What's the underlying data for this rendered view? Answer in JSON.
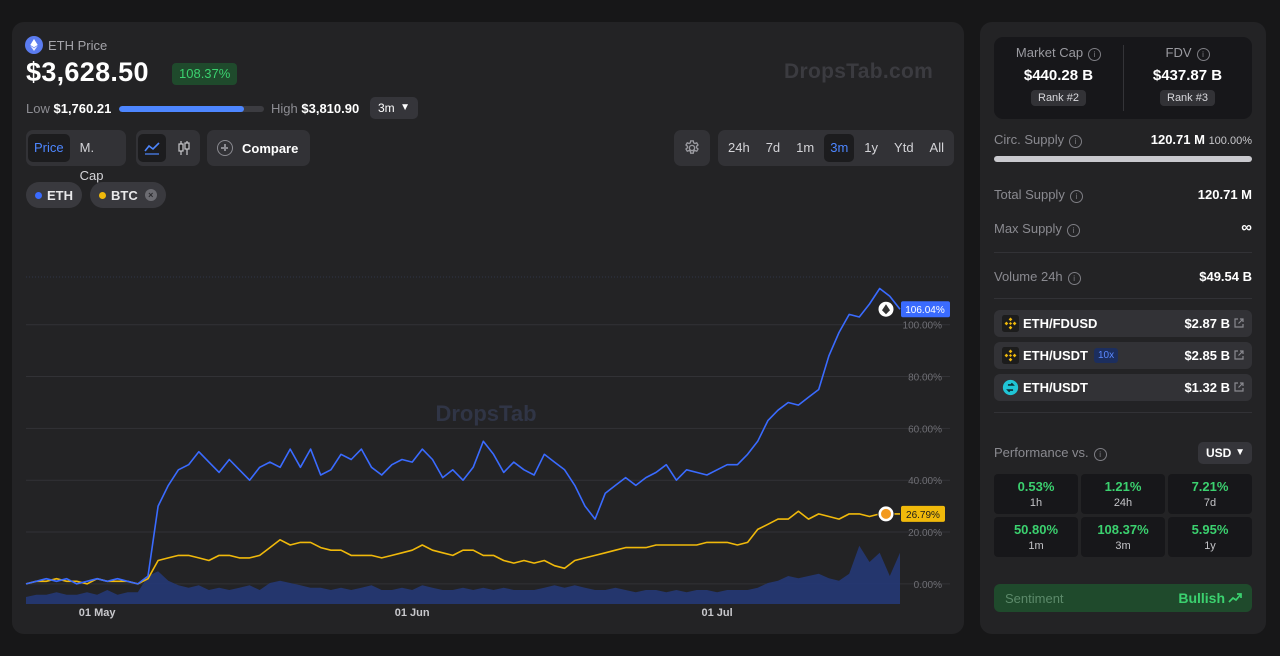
{
  "header": {
    "coin_label": "ETH Price",
    "price": "$3,628.50",
    "change_badge": "108.37%",
    "watermark": "DropsTab.com",
    "low_label": "Low",
    "low_value": "$1,760.21",
    "high_label": "High",
    "high_value": "$3,810.90",
    "range_fill": 0.86,
    "period_select": "3m"
  },
  "toolbar": {
    "metric_tabs": [
      "Price",
      "M. Cap"
    ],
    "active_metric": "Price",
    "compare_label": "Compare",
    "timeframes": [
      "24h",
      "7d",
      "1m",
      "3m",
      "1y",
      "Ytd",
      "All"
    ],
    "active_timeframe": "3m"
  },
  "legend": {
    "chip_eth": "ETH",
    "chip_btc": "BTC"
  },
  "colors": {
    "eth": "#3a6bff",
    "btc": "#f0b90b",
    "up": "#3bd16f",
    "accent": "#4d86ff"
  },
  "chart_data": {
    "type": "line",
    "title": "ETH Price",
    "y_unit": "% change",
    "ylim": [
      -7,
      130
    ],
    "y_ticks": [
      "0.00%",
      "20.00%",
      "40.00%",
      "60.00%",
      "80.00%",
      "100.00%"
    ],
    "y_tick_values": [
      0,
      20,
      40,
      60,
      80,
      100
    ],
    "x_ticks": [
      "01 May",
      "01 Jun",
      "01 Jul"
    ],
    "x_tick_index": [
      7,
      38,
      68
    ],
    "center_watermark": "DropsTab",
    "eth_end_label": "106.04%",
    "btc_end_label": "26.79%",
    "series": [
      {
        "name": "ETH",
        "values": [
          0,
          1,
          2,
          1,
          2,
          0,
          1,
          2,
          1,
          2,
          1,
          0,
          3,
          30,
          38,
          44,
          46,
          51,
          47,
          43,
          48,
          44,
          40,
          45,
          47,
          45,
          52,
          45,
          52,
          42,
          44,
          50,
          48,
          52,
          45,
          42,
          46,
          48,
          47,
          52,
          48,
          41,
          44,
          40,
          45,
          55,
          50,
          43,
          47,
          44,
          42,
          50,
          47,
          44,
          38,
          30,
          25,
          35,
          38,
          41,
          38,
          41,
          43,
          46,
          40,
          44,
          43,
          42,
          44,
          46,
          46,
          50,
          55,
          63,
          67,
          70,
          69,
          72,
          75,
          88,
          97,
          104,
          103,
          108,
          114,
          111,
          106
        ]
      },
      {
        "name": "BTC",
        "values": [
          0,
          1,
          1,
          2,
          1,
          1,
          0,
          2,
          1,
          1,
          1,
          0,
          2,
          9,
          10,
          11,
          11,
          10,
          9,
          11,
          11,
          10,
          10,
          11,
          14,
          17,
          15,
          16,
          16,
          14,
          13,
          13,
          11,
          11,
          11,
          10,
          11,
          12,
          13,
          15,
          13,
          12,
          11,
          13,
          13,
          11,
          11,
          9,
          8,
          9,
          8,
          9,
          7,
          6,
          9,
          10,
          11,
          12,
          13,
          14,
          14,
          14,
          15,
          15,
          15,
          15,
          15,
          16,
          16,
          16,
          15,
          16,
          21,
          23,
          25,
          25,
          28,
          25,
          27,
          26,
          25,
          27,
          27,
          26,
          27,
          27,
          27
        ]
      },
      {
        "name": "Volume",
        "values": [
          3,
          4,
          4,
          5,
          4,
          4,
          5,
          4,
          6,
          4,
          5,
          5,
          12,
          14,
          10,
          8,
          7,
          8,
          6,
          7,
          6,
          7,
          8,
          6,
          9,
          10,
          9,
          8,
          7,
          7,
          6,
          7,
          6,
          7,
          8,
          6,
          6,
          7,
          6,
          8,
          7,
          6,
          6,
          7,
          6,
          7,
          6,
          7,
          6,
          6,
          6,
          7,
          8,
          7,
          8,
          7,
          6,
          6,
          7,
          6,
          5,
          6,
          6,
          5,
          6,
          5,
          6,
          6,
          5,
          6,
          6,
          6,
          7,
          9,
          10,
          12,
          11,
          12,
          13,
          11,
          10,
          13,
          25,
          18,
          22,
          12,
          22
        ]
      }
    ]
  },
  "side": {
    "market_cap_label": "Market Cap",
    "market_cap_value": "$440.28 B",
    "market_cap_rank": "Rank #2",
    "fdv_label": "FDV",
    "fdv_value": "$437.87 B",
    "fdv_rank": "Rank #3",
    "circ_label": "Circ. Supply",
    "circ_value": "120.71 M",
    "circ_pct": "100.00%",
    "circ_fill": 1.0,
    "total_label": "Total Supply",
    "total_value": "120.71 M",
    "max_label": "Max Supply",
    "max_value": "∞",
    "volume_label": "Volume 24h",
    "volume_value": "$49.54 B",
    "pairs": [
      {
        "name": "ETH/FDUSD",
        "leverage": "",
        "amount": "$2.87 B"
      },
      {
        "name": "ETH/USDT",
        "leverage": "10x",
        "amount": "$2.85 B"
      },
      {
        "name": "ETH/USDT",
        "leverage": "",
        "amount": "$1.32 B"
      }
    ],
    "performance_label": "Performance vs.",
    "currency": "USD",
    "performance": [
      {
        "value": "0.53%",
        "period": "1h"
      },
      {
        "value": "1.21%",
        "period": "24h"
      },
      {
        "value": "7.21%",
        "period": "7d"
      },
      {
        "value": "50.80%",
        "period": "1m"
      },
      {
        "value": "108.37%",
        "period": "3m"
      },
      {
        "value": "5.95%",
        "period": "1y"
      }
    ],
    "sentiment_label": "Sentiment",
    "sentiment_value": "Bullish"
  }
}
